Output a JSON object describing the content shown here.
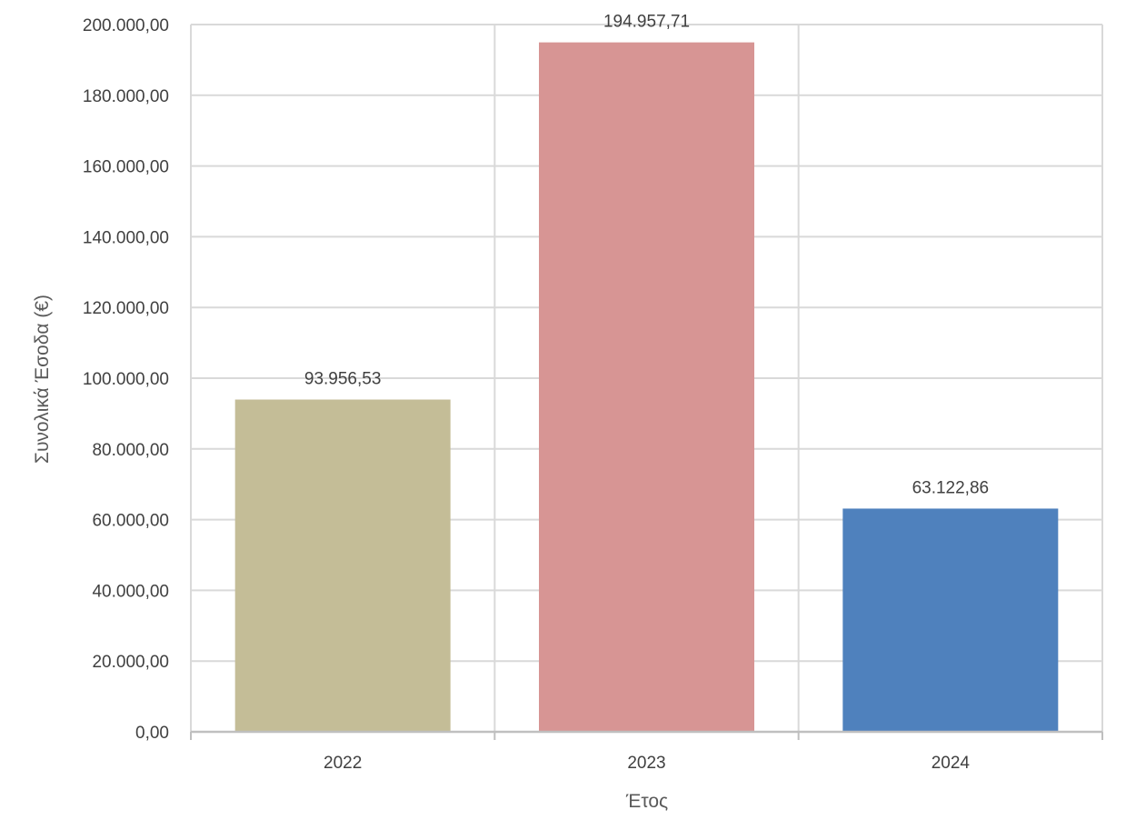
{
  "chart_data": {
    "type": "bar",
    "categories": [
      "2022",
      "2023",
      "2024"
    ],
    "values": [
      93956.53,
      194957.71,
      63122.86
    ],
    "data_labels": [
      "93.956,53",
      "194.957,71",
      "63.122,86"
    ],
    "colors": [
      "#c4bd97",
      "#d79594",
      "#4f81bd"
    ],
    "xlabel": "Έτος",
    "ylabel": "Συνολικά Έσοδα (€)",
    "ylim": [
      0,
      200000
    ],
    "ytick_values": [
      0,
      20000,
      40000,
      60000,
      80000,
      100000,
      120000,
      140000,
      160000,
      180000,
      200000
    ],
    "ytick_labels": [
      "0,00",
      "20.000,00",
      "40.000,00",
      "60.000,00",
      "80.000,00",
      "100.000,00",
      "120.000,00",
      "140.000,00",
      "160.000,00",
      "180.000,00",
      "200.000,00"
    ],
    "grid": true,
    "legend": false,
    "gridline_color": "#d9d9d9",
    "axis_color": "#bfbfbf"
  }
}
